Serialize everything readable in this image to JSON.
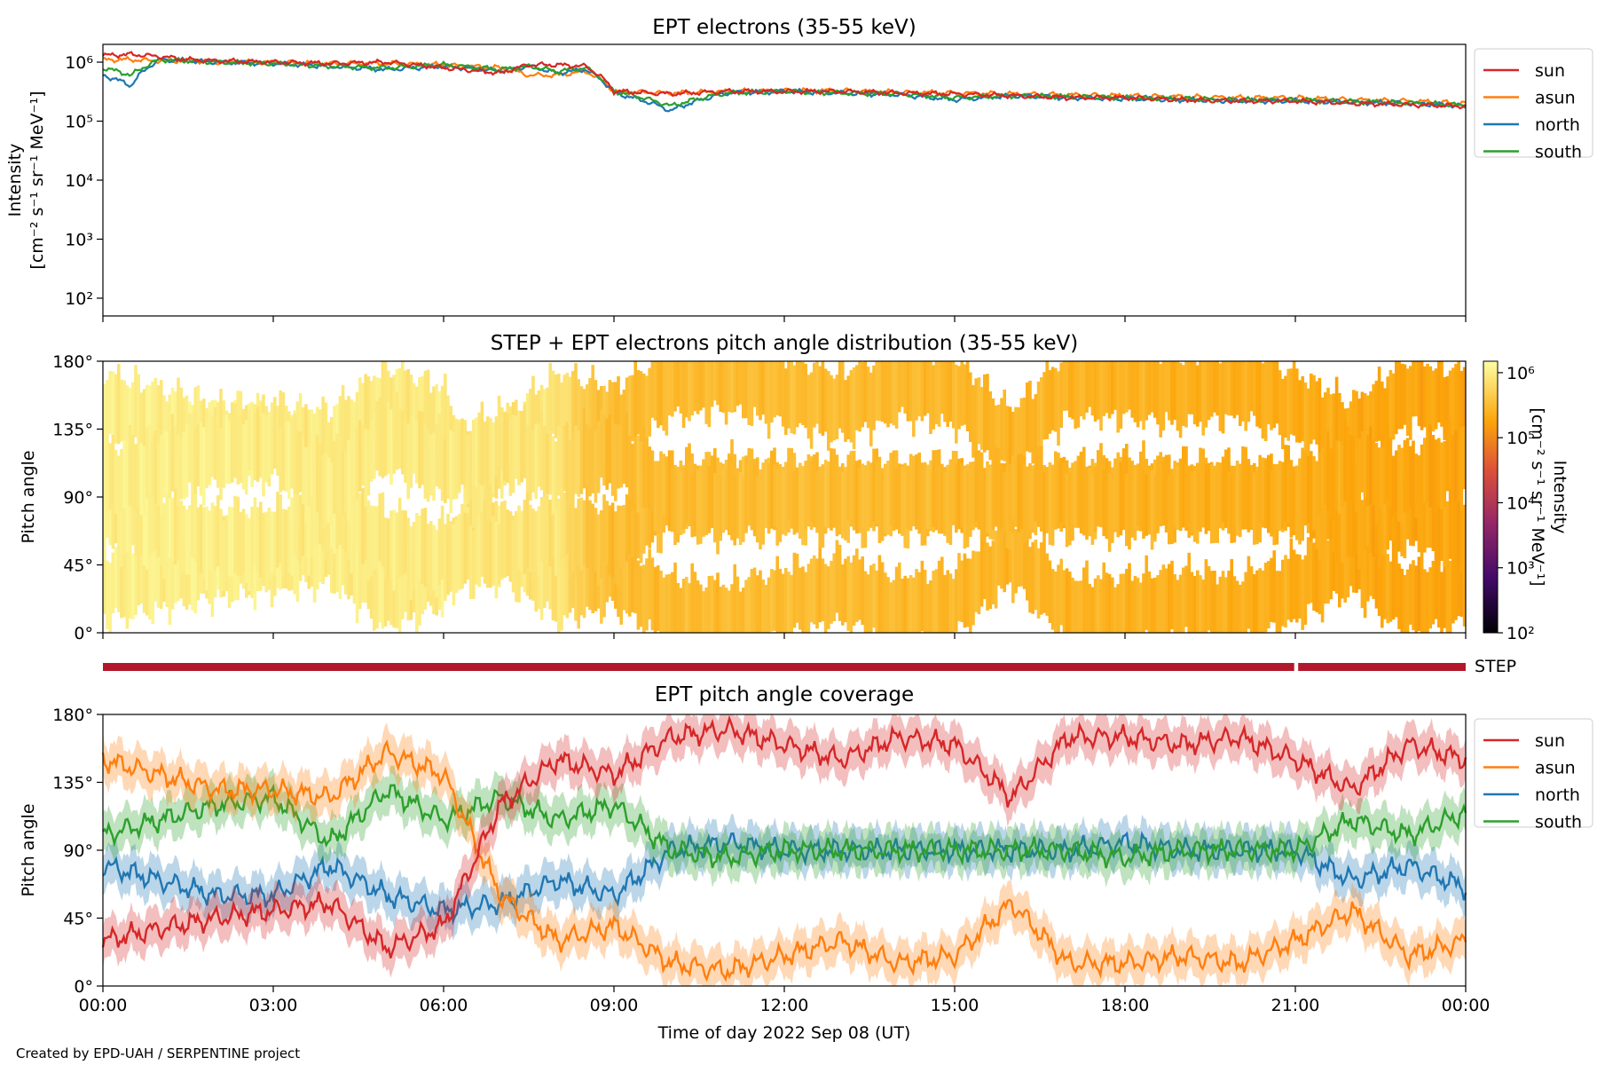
{
  "footer": {
    "credit": "Created by EPD-UAH / SERPENTINE project"
  },
  "colors": {
    "sun": "#d62728",
    "asun": "#ff7f0e",
    "north": "#1f77b4",
    "south": "#2ca02c",
    "step_bar": "#b2182b"
  },
  "chart_data": [
    {
      "id": "intensity",
      "type": "line",
      "title": "EPT electrons (35-55 keV)",
      "ylabel": [
        "Intensity",
        "[cm⁻² s⁻¹ sr⁻¹ MeV⁻¹]"
      ],
      "yscale": "log",
      "ylim": [
        50,
        2000000
      ],
      "yticks": [
        "10⁶",
        "10⁵",
        "10⁴",
        "10³",
        "10²"
      ],
      "legend": {
        "placement": "outside-right-top",
        "entries": [
          "sun",
          "asun",
          "north",
          "south"
        ]
      },
      "x_hours": [
        0,
        0.5,
        1,
        1.5,
        2,
        3,
        4,
        5,
        6,
        7,
        7.5,
        8,
        8.5,
        9,
        10,
        11,
        12,
        13,
        14,
        15,
        16,
        17,
        18,
        19,
        20,
        21,
        22,
        23,
        24
      ],
      "series": [
        {
          "name": "sun",
          "values": [
            1300000,
            1350000,
            1250000,
            1100000,
            1050000,
            1000000,
            950000,
            1000000,
            800000,
            650000,
            900000,
            900000,
            850000,
            320000,
            290000,
            320000,
            320000,
            320000,
            300000,
            290000,
            270000,
            250000,
            250000,
            230000,
            220000,
            220000,
            200000,
            190000,
            180000
          ]
        },
        {
          "name": "asun",
          "values": [
            1100000,
            1100000,
            1050000,
            1050000,
            1000000,
            1000000,
            950000,
            950000,
            900000,
            800000,
            600000,
            600000,
            700000,
            320000,
            300000,
            320000,
            330000,
            330000,
            310000,
            300000,
            290000,
            280000,
            270000,
            260000,
            250000,
            250000,
            230000,
            220000,
            200000
          ]
        },
        {
          "name": "north",
          "values": [
            600000,
            400000,
            1100000,
            1050000,
            1000000,
            950000,
            850000,
            750000,
            850000,
            700000,
            850000,
            650000,
            750000,
            300000,
            150000,
            300000,
            320000,
            300000,
            280000,
            230000,
            270000,
            250000,
            240000,
            230000,
            220000,
            220000,
            210000,
            200000,
            180000
          ]
        },
        {
          "name": "south",
          "values": [
            800000,
            600000,
            1100000,
            1050000,
            1000000,
            950000,
            850000,
            800000,
            900000,
            750000,
            850000,
            700000,
            800000,
            320000,
            180000,
            300000,
            320000,
            300000,
            290000,
            250000,
            270000,
            260000,
            250000,
            240000,
            230000,
            230000,
            215000,
            205000,
            185000
          ]
        }
      ]
    },
    {
      "id": "pad",
      "type": "heatmap",
      "title": "STEP + EPT electrons pitch angle distribution (35-55 keV)",
      "ylabel": "Pitch angle",
      "ylim": [
        0,
        180
      ],
      "yticks": [
        "180°",
        "135°",
        "90°",
        "45°",
        "0°"
      ],
      "colorbar": {
        "label": [
          "Intensity",
          "[cm⁻² s⁻¹ sr⁻¹ MeV⁻¹]"
        ],
        "scale": "log",
        "range": [
          100,
          1500000
        ],
        "ticks": [
          "10⁶",
          "10⁵",
          "10⁴",
          "10³",
          "10²"
        ],
        "colormap": "inferno"
      },
      "x_hours": [
        0,
        1,
        2,
        3,
        4,
        5,
        6,
        7,
        8,
        8.5,
        9,
        10,
        11,
        12,
        13,
        14,
        15,
        16,
        17,
        18,
        19,
        20,
        21,
        22,
        23,
        24
      ],
      "intensity": [
        1000000,
        1000000,
        1000000,
        950000,
        950000,
        900000,
        900000,
        800000,
        800000,
        400000,
        320000,
        300000,
        310000,
        320000,
        310000,
        300000,
        280000,
        270000,
        260000,
        250000,
        240000,
        230000,
        220000,
        200000,
        190000,
        180000
      ]
    },
    {
      "id": "step-bar",
      "type": "bar",
      "label": "STEP",
      "coverage_hours": [
        [
          0,
          20.98
        ],
        [
          21.05,
          24
        ]
      ]
    },
    {
      "id": "coverage",
      "type": "area",
      "title": "EPT pitch angle coverage",
      "ylabel": "Pitch angle",
      "xlabel": "Time of day 2022 Sep 08 (UT)",
      "ylim": [
        0,
        180
      ],
      "yticks": [
        "180°",
        "135°",
        "90°",
        "45°",
        "0°"
      ],
      "xticks": [
        "00:00",
        "03:00",
        "06:00",
        "09:00",
        "12:00",
        "15:00",
        "18:00",
        "21:00",
        "00:00"
      ],
      "legend": {
        "placement": "outside-right-top",
        "entries": [
          "sun",
          "asun",
          "north",
          "south"
        ]
      },
      "x_hours": [
        0,
        1,
        2,
        3,
        4,
        5,
        6,
        7,
        8,
        9,
        10,
        11,
        12,
        13,
        14,
        15,
        16,
        17,
        18,
        19,
        20,
        21,
        22,
        23,
        24
      ],
      "series": [
        {
          "name": "sun",
          "values": [
            30,
            38,
            45,
            50,
            55,
            25,
            40,
            120,
            150,
            140,
            165,
            170,
            160,
            150,
            165,
            160,
            125,
            165,
            165,
            160,
            165,
            150,
            130,
            160,
            150
          ]
        },
        {
          "name": "asun",
          "values": [
            150,
            140,
            130,
            130,
            125,
            155,
            140,
            60,
            30,
            40,
            15,
            10,
            20,
            30,
            15,
            20,
            55,
            15,
            15,
            20,
            15,
            30,
            50,
            20,
            30
          ]
        },
        {
          "name": "north",
          "values": [
            80,
            70,
            60,
            60,
            80,
            60,
            50,
            55,
            70,
            60,
            90,
            95,
            90,
            90,
            90,
            90,
            90,
            90,
            95,
            90,
            90,
            90,
            70,
            80,
            65
          ]
        },
        {
          "name": "south",
          "values": [
            100,
            110,
            120,
            125,
            95,
            130,
            110,
            125,
            110,
            120,
            90,
            85,
            90,
            90,
            90,
            90,
            90,
            90,
            85,
            90,
            90,
            90,
            110,
            100,
            115
          ]
        }
      ]
    }
  ]
}
